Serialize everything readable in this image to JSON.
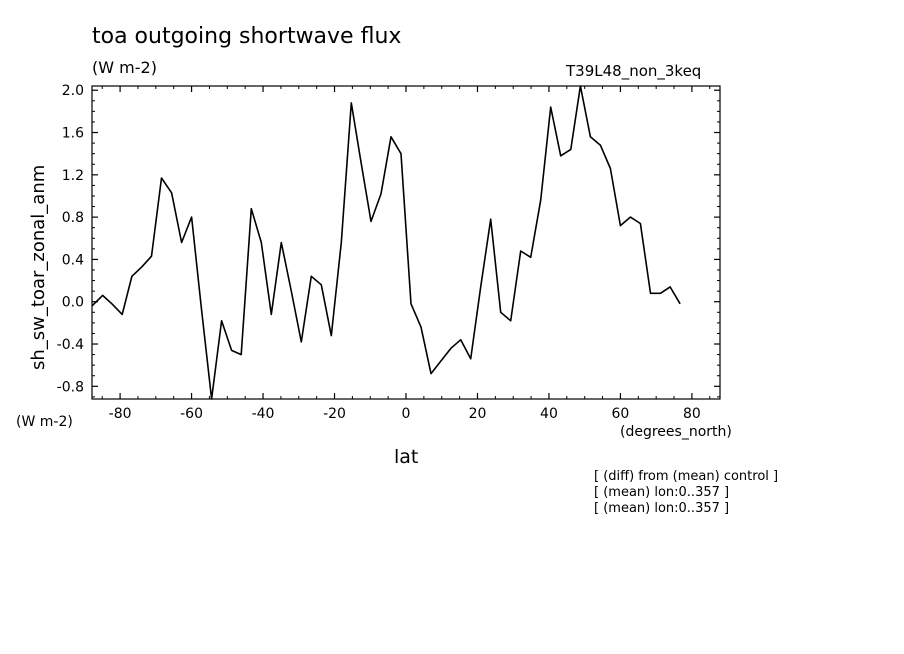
{
  "header": {
    "title": "toa outgoing shortwave flux",
    "units": "(W m-2)",
    "experiment": "T39L48_non_3keq"
  },
  "axes": {
    "y_units": "(W m-2)",
    "x_units": "(degrees_north)"
  },
  "notes": [
    "[ (diff) from (mean) control ]",
    "[ (mean) lon:0..357 ]",
    "[ (mean) lon:0..357 ]"
  ],
  "chart_data": {
    "type": "line",
    "xlabel": "lat",
    "ylabel": "sh_sw_toar_zonal_anm",
    "xlim": [
      -87.86,
      87.86
    ],
    "ylim": [
      -0.92,
      2.04
    ],
    "x_ticks": [
      -80,
      -60,
      -40,
      -20,
      0,
      20,
      40,
      60,
      80
    ],
    "x_tick_labels": [
      "-80",
      "-60",
      "-40",
      "-20",
      "0",
      "20",
      "40",
      "60",
      "80"
    ],
    "y_ticks": [
      -0.8,
      -0.4,
      0.0,
      0.4,
      0.8,
      1.2,
      1.6,
      2.0
    ],
    "y_tick_labels": [
      "-0.8",
      "-0.4",
      "0.0",
      "0.4",
      "0.8",
      "1.2",
      "1.6",
      "2.0"
    ],
    "grid": false,
    "line_color": "#000000",
    "series": [
      {
        "x": [
          -87.86,
          -84.9,
          -82.3,
          -79.4,
          -76.7,
          -73.9,
          -71.2,
          -68.4,
          -65.6,
          -62.8,
          -60.0,
          -57.2,
          -54.4,
          -51.6,
          -48.8,
          -46.1,
          -43.3,
          -40.5,
          -37.7,
          -34.9,
          -32.1,
          -29.3,
          -26.5,
          -23.7,
          -20.9,
          -18.1,
          -15.3,
          -12.6,
          -9.8,
          -7.0,
          -4.2,
          -1.4,
          1.4,
          4.2,
          7.0,
          9.8,
          12.6,
          15.3,
          18.1,
          20.9,
          23.7,
          26.5,
          29.3,
          32.1,
          34.9,
          37.7,
          40.5,
          43.3,
          46.1,
          48.8,
          51.6,
          54.4,
          57.2,
          60.0,
          62.8,
          65.6,
          68.4,
          71.2,
          73.9,
          76.7,
          79.4,
          82.3,
          84.9,
          87.86
        ],
        "values": [
          -0.04,
          0.06,
          -0.02,
          -0.12,
          0.24,
          0.33,
          0.43,
          1.17,
          1.03,
          0.56,
          0.8,
          -0.08,
          -0.92,
          -0.18,
          -0.46,
          -0.5,
          0.88,
          0.56,
          -0.12,
          0.56,
          0.1,
          -0.38,
          0.24,
          0.16,
          -0.32,
          0.56,
          1.88,
          1.32,
          0.76,
          1.02,
          1.56,
          1.4,
          -0.02,
          -0.24,
          -0.68,
          -0.56,
          -0.44,
          -0.36,
          -0.54,
          0.14,
          0.78,
          -0.1,
          -0.18,
          0.48,
          0.42,
          0.96,
          1.84,
          1.38,
          1.44,
          2.04,
          1.56,
          1.48,
          1.26,
          0.72,
          0.8,
          0.74,
          0.08,
          0.08,
          0.14,
          -0.02,
          null,
          null,
          null,
          null
        ]
      }
    ]
  }
}
